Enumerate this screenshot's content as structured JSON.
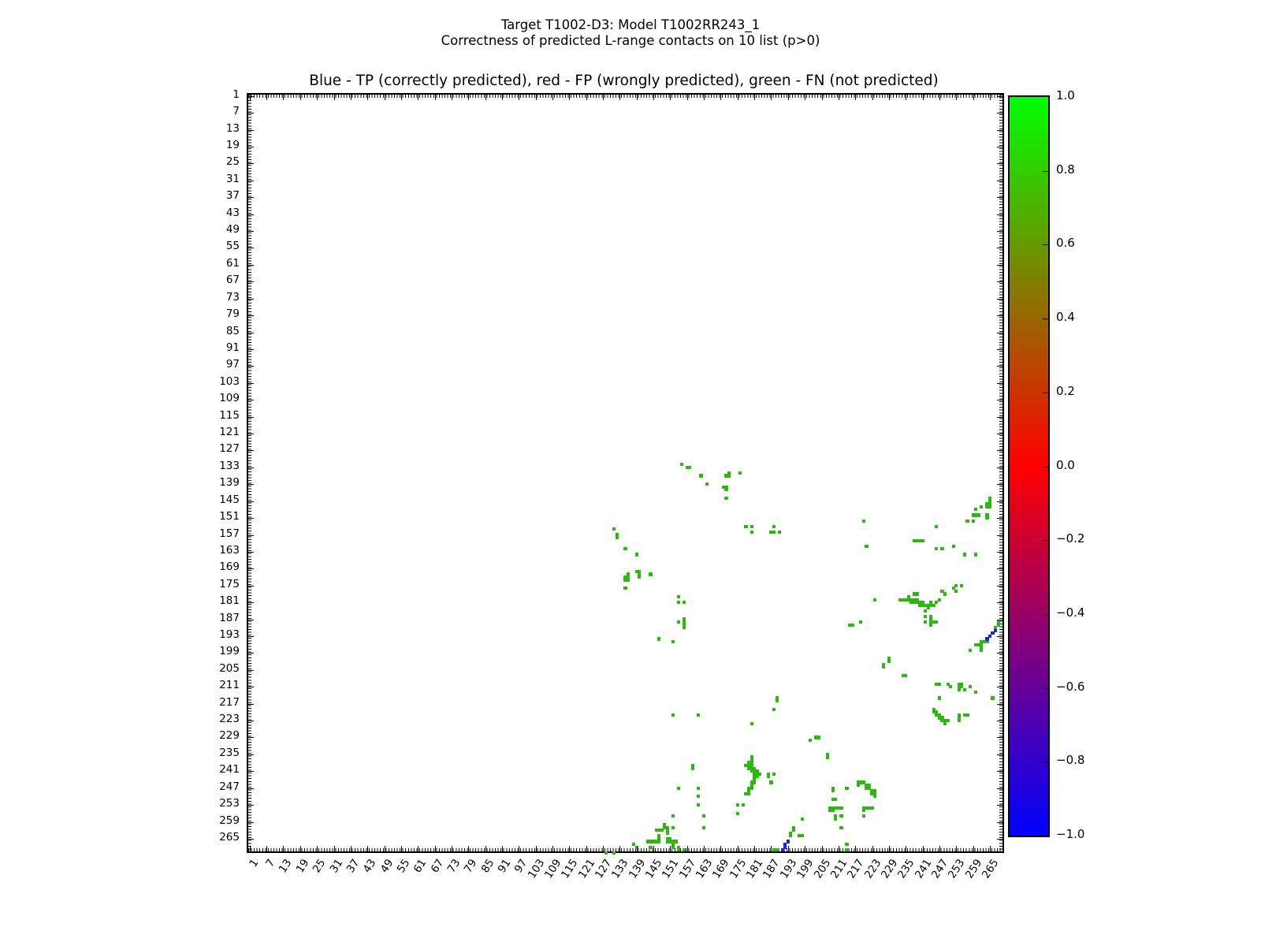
{
  "figure": {
    "suptitle_line1": "Target T1002-D3: Model T1002RR243_1",
    "suptitle_line2": "Correctness of predicted L-range contacts on 10 list (p>0)"
  },
  "chart_data": {
    "type": "heatmap",
    "title": "Blue - TP (correctly predicted), red - FP (wrongly predicted), green - FN (not predicted)",
    "xlabel": "",
    "ylabel": "",
    "x_range": [
      0.5,
      269.5
    ],
    "y_range": [
      0.5,
      269.5
    ],
    "y_axis_inverted": true,
    "grid": false,
    "axis_ticks": [
      1,
      7,
      13,
      19,
      25,
      31,
      37,
      43,
      49,
      55,
      61,
      67,
      73,
      79,
      85,
      91,
      97,
      103,
      109,
      115,
      121,
      127,
      133,
      139,
      145,
      151,
      157,
      163,
      169,
      175,
      181,
      187,
      193,
      199,
      205,
      211,
      217,
      223,
      229,
      235,
      241,
      247,
      253,
      259,
      265
    ],
    "legend": {
      "TP": "blue (correctly predicted)",
      "FP": "red (wrongly predicted)",
      "FN": "green (not predicted)"
    },
    "point_colors": {
      "tp": "#1627df",
      "fp": "#ff0000",
      "fn": "#2cb711"
    },
    "colorbar": {
      "tick_labels": [
        "1.0",
        "0.8",
        "0.6",
        "0.4",
        "0.2",
        "0.0",
        "−0.2",
        "−0.4",
        "−0.6",
        "−0.8",
        "−1.0"
      ],
      "gradient_stops": [
        "#00ff00",
        "#33cc00",
        "#669900",
        "#996600",
        "#cc3300",
        "#ff0000",
        "#cc0033",
        "#990066",
        "#660099",
        "#3300cc",
        "#0000ff"
      ]
    },
    "fn_points_green": [
      [
        155,
        132
      ],
      [
        157,
        133
      ],
      [
        158,
        133
      ],
      [
        162,
        136
      ],
      [
        164,
        139
      ],
      [
        172,
        135
      ],
      [
        171,
        136
      ],
      [
        172,
        136
      ],
      [
        176,
        135
      ],
      [
        170,
        140
      ],
      [
        171,
        140
      ],
      [
        171,
        141
      ],
      [
        171,
        144
      ],
      [
        131,
        155
      ],
      [
        132,
        157
      ],
      [
        132,
        158
      ],
      [
        135,
        162
      ],
      [
        139,
        164
      ],
      [
        139,
        170
      ],
      [
        140,
        170
      ],
      [
        140,
        171
      ],
      [
        140,
        172
      ],
      [
        136,
        171
      ],
      [
        136,
        172
      ],
      [
        136,
        173
      ],
      [
        135,
        172
      ],
      [
        135,
        173
      ],
      [
        144,
        171
      ],
      [
        135,
        176
      ],
      [
        154,
        179
      ],
      [
        154,
        181
      ],
      [
        156,
        181
      ],
      [
        156,
        187
      ],
      [
        154,
        188
      ],
      [
        156,
        188
      ],
      [
        156,
        189
      ],
      [
        156,
        190
      ],
      [
        147,
        194
      ],
      [
        152,
        195
      ],
      [
        178,
        154
      ],
      [
        180,
        154
      ],
      [
        188,
        154
      ],
      [
        180,
        156
      ],
      [
        187,
        156
      ],
      [
        188,
        156
      ],
      [
        190,
        156
      ],
      [
        220,
        152
      ],
      [
        221,
        161
      ],
      [
        246,
        154
      ],
      [
        257,
        152
      ],
      [
        259,
        152
      ],
      [
        260,
        148
      ],
      [
        262,
        147
      ],
      [
        259,
        150
      ],
      [
        260,
        150
      ],
      [
        261,
        150
      ],
      [
        264,
        146
      ],
      [
        264,
        147
      ],
      [
        265,
        144
      ],
      [
        265,
        145
      ],
      [
        265,
        146
      ],
      [
        265,
        147
      ],
      [
        264,
        150
      ],
      [
        264,
        151
      ],
      [
        238,
        159
      ],
      [
        239,
        159
      ],
      [
        240,
        159
      ],
      [
        241,
        159
      ],
      [
        246,
        162
      ],
      [
        248,
        162
      ],
      [
        252,
        161
      ],
      [
        256,
        164
      ],
      [
        260,
        164
      ],
      [
        253,
        175
      ],
      [
        255,
        175
      ],
      [
        252,
        176
      ],
      [
        253,
        177
      ],
      [
        224,
        180
      ],
      [
        233,
        180
      ],
      [
        234,
        180
      ],
      [
        235,
        180
      ],
      [
        236,
        179
      ],
      [
        236,
        180
      ],
      [
        237,
        180
      ],
      [
        238,
        180
      ],
      [
        239,
        180
      ],
      [
        238,
        178
      ],
      [
        239,
        178
      ],
      [
        237,
        181
      ],
      [
        238,
        181
      ],
      [
        239,
        181
      ],
      [
        240,
        181
      ],
      [
        241,
        181
      ],
      [
        240,
        182
      ],
      [
        241,
        182
      ],
      [
        242,
        182
      ],
      [
        243,
        182
      ],
      [
        243,
        183
      ],
      [
        244,
        181
      ],
      [
        244,
        182
      ],
      [
        245,
        182
      ],
      [
        246,
        181
      ],
      [
        247,
        180
      ],
      [
        248,
        177
      ],
      [
        249,
        178
      ],
      [
        242,
        184
      ],
      [
        242,
        186
      ],
      [
        244,
        186
      ],
      [
        244,
        187
      ],
      [
        242,
        188
      ],
      [
        244,
        188
      ],
      [
        245,
        188
      ],
      [
        246,
        188
      ],
      [
        244,
        189
      ],
      [
        215,
        189
      ],
      [
        216,
        189
      ],
      [
        219,
        188
      ],
      [
        268,
        188
      ],
      [
        268,
        189
      ],
      [
        267,
        190
      ],
      [
        263,
        195
      ],
      [
        264,
        195
      ],
      [
        260,
        196
      ],
      [
        261,
        196
      ],
      [
        262,
        196
      ],
      [
        262,
        195
      ],
      [
        262,
        197
      ],
      [
        262,
        198
      ],
      [
        258,
        198
      ],
      [
        229,
        201
      ],
      [
        229,
        202
      ],
      [
        227,
        203
      ],
      [
        227,
        204
      ],
      [
        234,
        207
      ],
      [
        235,
        207
      ],
      [
        246,
        210
      ],
      [
        247,
        210
      ],
      [
        250,
        210
      ],
      [
        251,
        211
      ],
      [
        254,
        210
      ],
      [
        255,
        210
      ],
      [
        254,
        211
      ],
      [
        255,
        211
      ],
      [
        254,
        212
      ],
      [
        256,
        212
      ],
      [
        258,
        211
      ],
      [
        260,
        213
      ],
      [
        266,
        215
      ],
      [
        247,
        215
      ],
      [
        245,
        219
      ],
      [
        245,
        220
      ],
      [
        246,
        220
      ],
      [
        246,
        221
      ],
      [
        247,
        221
      ],
      [
        247,
        222
      ],
      [
        248,
        222
      ],
      [
        248,
        223
      ],
      [
        249,
        223
      ],
      [
        250,
        223
      ],
      [
        249,
        224
      ],
      [
        254,
        221
      ],
      [
        254,
        222
      ],
      [
        254,
        223
      ],
      [
        256,
        221
      ],
      [
        257,
        221
      ],
      [
        152,
        221
      ],
      [
        161,
        221
      ],
      [
        189,
        215
      ],
      [
        189,
        216
      ],
      [
        188,
        219
      ],
      [
        180,
        224
      ],
      [
        203,
        229
      ],
      [
        204,
        229
      ],
      [
        201,
        230
      ],
      [
        207,
        235
      ],
      [
        207,
        236
      ],
      [
        159,
        239
      ],
      [
        159,
        240
      ],
      [
        180,
        236
      ],
      [
        180,
        237
      ],
      [
        179,
        238
      ],
      [
        180,
        238
      ],
      [
        178,
        239
      ],
      [
        179,
        239
      ],
      [
        180,
        239
      ],
      [
        179,
        240
      ],
      [
        180,
        240
      ],
      [
        181,
        240
      ],
      [
        180,
        241
      ],
      [
        181,
        241
      ],
      [
        182,
        241
      ],
      [
        181,
        242
      ],
      [
        182,
        242
      ],
      [
        183,
        242
      ],
      [
        181,
        243
      ],
      [
        182,
        243
      ],
      [
        181,
        244
      ],
      [
        180,
        245
      ],
      [
        181,
        245
      ],
      [
        180,
        246
      ],
      [
        179,
        247
      ],
      [
        180,
        247
      ],
      [
        179,
        248
      ],
      [
        178,
        249
      ],
      [
        179,
        249
      ],
      [
        186,
        242
      ],
      [
        186,
        243
      ],
      [
        188,
        242
      ],
      [
        187,
        245
      ],
      [
        154,
        247
      ],
      [
        161,
        247
      ],
      [
        161,
        250
      ],
      [
        161,
        253
      ],
      [
        175,
        253
      ],
      [
        177,
        253
      ],
      [
        175,
        256
      ],
      [
        163,
        257
      ],
      [
        152,
        257
      ],
      [
        149,
        260
      ],
      [
        150,
        261
      ],
      [
        152,
        261
      ],
      [
        163,
        261
      ],
      [
        149,
        261
      ],
      [
        150,
        262
      ],
      [
        150,
        263
      ],
      [
        146,
        262
      ],
      [
        147,
        262
      ],
      [
        148,
        262
      ],
      [
        147,
        264
      ],
      [
        147,
        265
      ],
      [
        145,
        266
      ],
      [
        146,
        266
      ],
      [
        147,
        266
      ],
      [
        143,
        266
      ],
      [
        144,
        266
      ],
      [
        144,
        268
      ],
      [
        139,
        268
      ],
      [
        138,
        267
      ],
      [
        150,
        265
      ],
      [
        151,
        265
      ],
      [
        150,
        266
      ],
      [
        151,
        266
      ],
      [
        152,
        266
      ],
      [
        153,
        266
      ],
      [
        152,
        267
      ],
      [
        152,
        268
      ],
      [
        154,
        268
      ],
      [
        154,
        269
      ],
      [
        156,
        269
      ],
      [
        128,
        270
      ],
      [
        131,
        270
      ],
      [
        188,
        269
      ],
      [
        189,
        269
      ],
      [
        194,
        263
      ],
      [
        194,
        264
      ],
      [
        195,
        261
      ],
      [
        195,
        262
      ],
      [
        197,
        264
      ],
      [
        198,
        264
      ],
      [
        198,
        258
      ],
      [
        209,
        247
      ],
      [
        209,
        248
      ],
      [
        214,
        247
      ],
      [
        218,
        245
      ],
      [
        219,
        245
      ],
      [
        220,
        245
      ],
      [
        218,
        246
      ],
      [
        221,
        246
      ],
      [
        222,
        246
      ],
      [
        221,
        247
      ],
      [
        222,
        247
      ],
      [
        223,
        248
      ],
      [
        224,
        248
      ],
      [
        223,
        249
      ],
      [
        224,
        249
      ],
      [
        224,
        250
      ],
      [
        209,
        251
      ],
      [
        210,
        251
      ],
      [
        208,
        254
      ],
      [
        209,
        254
      ],
      [
        210,
        254
      ],
      [
        211,
        254
      ],
      [
        212,
        254
      ],
      [
        208,
        255
      ],
      [
        209,
        255
      ],
      [
        220,
        254
      ],
      [
        220,
        255
      ],
      [
        221,
        254
      ],
      [
        222,
        254
      ],
      [
        223,
        254
      ],
      [
        210,
        257
      ],
      [
        210,
        258
      ],
      [
        212,
        257
      ],
      [
        220,
        257
      ],
      [
        212,
        261
      ],
      [
        214,
        267
      ],
      [
        214,
        269
      ]
    ],
    "tp_points_blue": [
      [
        264,
        194
      ],
      [
        265,
        193
      ],
      [
        266,
        192
      ],
      [
        267,
        191
      ],
      [
        191,
        269
      ],
      [
        192,
        268
      ],
      [
        192,
        267
      ],
      [
        193,
        266
      ]
    ],
    "fp_points_red": []
  }
}
